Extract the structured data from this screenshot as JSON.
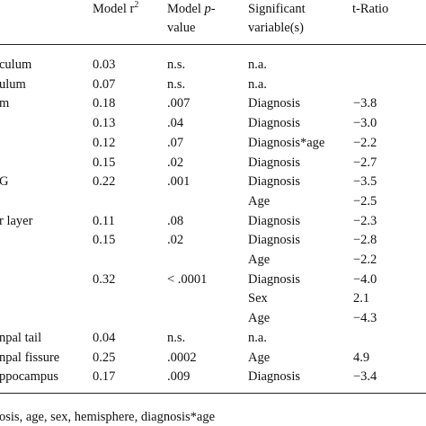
{
  "table": {
    "header": {
      "r2": {
        "text": "Model r",
        "sup": "2"
      },
      "p": {
        "parts": [
          "Model ",
          "p",
          "-"
        ],
        "line2": "value"
      },
      "variable": [
        "Significant",
        "variable(s)"
      ],
      "t": "t-Ratio"
    },
    "rows": [
      [
        "culum",
        "0.03",
        "n.s.",
        "n.a.",
        null
      ],
      [
        "ulum",
        "0.07",
        "n.s.",
        "n.a.",
        null
      ],
      [
        "m",
        "0.18",
        ".007",
        "Diagnosis",
        "−3.8"
      ],
      [
        null,
        "0.13",
        ".04",
        "Diagnosis",
        "−3.0"
      ],
      [
        null,
        "0.12",
        ".07",
        "Diagnosis*age",
        "−2.2"
      ],
      [
        null,
        "0.15",
        ".02",
        "Diagnosis",
        "−2.7"
      ],
      [
        "G",
        "0.22",
        ".001",
        "Diagnosis",
        "−3.5"
      ],
      [
        null,
        null,
        null,
        "Age",
        "−2.5"
      ],
      [
        "r layer",
        "0.11",
        ".08",
        "Diagnosis",
        "−2.3"
      ],
      [
        null,
        "0.15",
        ".02",
        "Diagnosis",
        "−2.8"
      ],
      [
        null,
        null,
        null,
        "Age",
        "−2.2"
      ],
      [
        null,
        "0.32",
        "< .0001",
        "Diagnosis",
        "−4.0"
      ],
      [
        null,
        null,
        null,
        "Sex",
        "2.1"
      ],
      [
        null,
        null,
        null,
        "Age",
        "−4.3"
      ],
      [
        "npal tail",
        "0.04",
        "n.s.",
        "n.a.",
        null
      ],
      [
        "npal fissure",
        "0.25",
        ".0002",
        "Age",
        "4.9"
      ],
      [
        "ppocampus",
        "0.17",
        ".009",
        "Diagnosis",
        "−3.4"
      ]
    ],
    "footnote": "osis, age, sex, hemisphere, diagnosis*age"
  }
}
